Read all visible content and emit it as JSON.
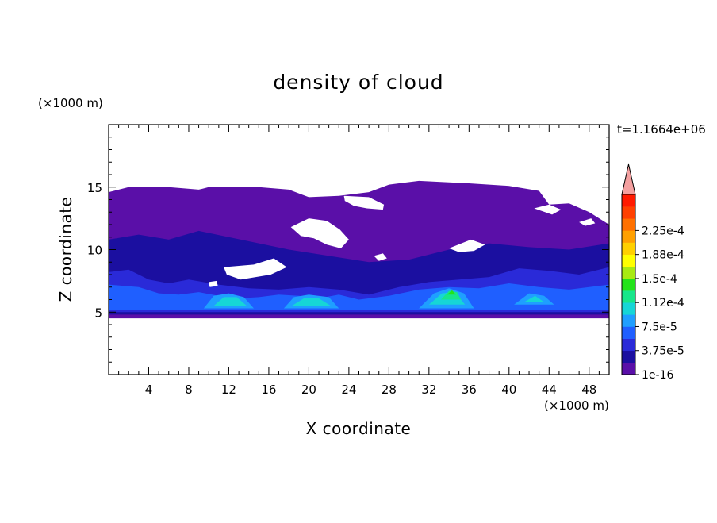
{
  "chart_data": {
    "type": "heatmap",
    "title": "density of cloud",
    "xlabel": "X coordinate",
    "ylabel": "Z coordinate",
    "x_unit": "(×1000 m)",
    "y_unit": "(×1000 m)",
    "time_label": "t=1.1664e+06",
    "xlim": [
      0,
      50
    ],
    "ylim": [
      0,
      20
    ],
    "x_ticks": [
      4,
      8,
      12,
      16,
      20,
      24,
      28,
      32,
      36,
      40,
      44,
      48
    ],
    "x_tick_labels": [
      "4",
      "8",
      "12",
      "16",
      "20",
      "24",
      "28",
      "32",
      "36",
      "40",
      "44",
      "48"
    ],
    "y_ticks": [
      5,
      10,
      15
    ],
    "y_tick_labels": [
      "5",
      "10",
      "15"
    ],
    "colorbar": {
      "labels": [
        "1e-16",
        "3.75e-5",
        "7.5e-5",
        "1.12e-4",
        "1.5e-4",
        "1.88e-4",
        "2.25e-4"
      ],
      "colors": [
        "#5a0fa8",
        "#1b0fa0",
        "#2a2ad8",
        "#1f5fff",
        "#1f9fff",
        "#16d6d6",
        "#17e68a",
        "#23e31a",
        "#a8ea12",
        "#ffff00",
        "#ffd000",
        "#ffa000",
        "#ff7000",
        "#ff4000",
        "#ff1a00"
      ],
      "extend_color": "#f4a0a0"
    },
    "regions": [
      {
        "level": 1,
        "polygon": [
          [
            0,
            14.6
          ],
          [
            2,
            15
          ],
          [
            6,
            15
          ],
          [
            9,
            14.8
          ],
          [
            10,
            15
          ],
          [
            15,
            15
          ],
          [
            18,
            14.8
          ],
          [
            20,
            14.2
          ],
          [
            23,
            14.3
          ],
          [
            26,
            14.6
          ],
          [
            28,
            15.2
          ],
          [
            31,
            15.5
          ],
          [
            36,
            15.3
          ],
          [
            40,
            15.1
          ],
          [
            43,
            14.7
          ],
          [
            44,
            13.6
          ],
          [
            46,
            13.7
          ],
          [
            48,
            13
          ],
          [
            50,
            12
          ],
          [
            50,
            4.5
          ],
          [
            0,
            4.5
          ]
        ]
      },
      {
        "level": 2,
        "polygon": [
          [
            0,
            10.8
          ],
          [
            3,
            11.2
          ],
          [
            6,
            10.8
          ],
          [
            9,
            11.5
          ],
          [
            12,
            11
          ],
          [
            15,
            10.5
          ],
          [
            18,
            10
          ],
          [
            22,
            9.5
          ],
          [
            26,
            9
          ],
          [
            30,
            9.2
          ],
          [
            34,
            10
          ],
          [
            38,
            10.5
          ],
          [
            42,
            10.2
          ],
          [
            46,
            10
          ],
          [
            50,
            10.5
          ],
          [
            50,
            4.8
          ],
          [
            0,
            4.8
          ]
        ]
      },
      {
        "level": 3,
        "polygon": [
          [
            0,
            8.2
          ],
          [
            2,
            8.4
          ],
          [
            4,
            7.6
          ],
          [
            6,
            7.3
          ],
          [
            8,
            7.6
          ],
          [
            11,
            7.2
          ],
          [
            14,
            6.9
          ],
          [
            17,
            6.8
          ],
          [
            20,
            7
          ],
          [
            23,
            6.8
          ],
          [
            26,
            6.4
          ],
          [
            29,
            7
          ],
          [
            32,
            7.4
          ],
          [
            35,
            7.6
          ],
          [
            38,
            7.8
          ],
          [
            41,
            8.5
          ],
          [
            44,
            8.3
          ],
          [
            47,
            8
          ],
          [
            50,
            8.6
          ],
          [
            50,
            5
          ],
          [
            0,
            5
          ]
        ]
      },
      {
        "level": 4,
        "polygon": [
          [
            0,
            7.2
          ],
          [
            3,
            7
          ],
          [
            5,
            6.5
          ],
          [
            7,
            6.4
          ],
          [
            9,
            6.6
          ],
          [
            11,
            6.3
          ],
          [
            13,
            6.1
          ],
          [
            15,
            6.2
          ],
          [
            17,
            6.4
          ],
          [
            19,
            6.3
          ],
          [
            21,
            6.1
          ],
          [
            23,
            6.4
          ],
          [
            25,
            6
          ],
          [
            28,
            6.3
          ],
          [
            31,
            6.8
          ],
          [
            34,
            7
          ],
          [
            37,
            6.9
          ],
          [
            40,
            7.3
          ],
          [
            43,
            7
          ],
          [
            46,
            6.8
          ],
          [
            50,
            7.2
          ],
          [
            50,
            5.2
          ],
          [
            0,
            5.2
          ]
        ]
      },
      {
        "level": 5,
        "polygon": [
          [
            9.5,
            5.3
          ],
          [
            10.5,
            6.3
          ],
          [
            12,
            6.5
          ],
          [
            13.5,
            6.2
          ],
          [
            14.5,
            5.3
          ]
        ]
      },
      {
        "level": 5,
        "polygon": [
          [
            17.5,
            5.3
          ],
          [
            18.5,
            6.2
          ],
          [
            20,
            6.4
          ],
          [
            22,
            6.2
          ],
          [
            23,
            5.3
          ]
        ]
      },
      {
        "level": 5,
        "polygon": [
          [
            31,
            5.3
          ],
          [
            32.5,
            6.5
          ],
          [
            34,
            6.9
          ],
          [
            35.5,
            6.5
          ],
          [
            36.5,
            5.3
          ]
        ]
      },
      {
        "level": 5,
        "polygon": [
          [
            40.5,
            5.6
          ],
          [
            42,
            6.5
          ],
          [
            43.5,
            6.3
          ],
          [
            44.5,
            5.6
          ]
        ]
      },
      {
        "level": 6,
        "polygon": [
          [
            10.5,
            5.5
          ],
          [
            11.5,
            6.2
          ],
          [
            12.8,
            6.2
          ],
          [
            13.8,
            5.5
          ]
        ]
      },
      {
        "level": 6,
        "polygon": [
          [
            18.3,
            5.5
          ],
          [
            19.5,
            6.1
          ],
          [
            21,
            6.1
          ],
          [
            22.2,
            5.5
          ]
        ]
      },
      {
        "level": 6,
        "polygon": [
          [
            32,
            5.6
          ],
          [
            33.3,
            6.5
          ],
          [
            34.6,
            6.6
          ],
          [
            35.6,
            5.6
          ]
        ]
      },
      {
        "level": 6,
        "polygon": [
          [
            41.5,
            5.8
          ],
          [
            42.6,
            6.3
          ],
          [
            43.5,
            5.8
          ]
        ]
      },
      {
        "level": 7,
        "polygon": [
          [
            33.2,
            6
          ],
          [
            34,
            6.7
          ],
          [
            34.8,
            6.6
          ],
          [
            35.2,
            6
          ]
        ]
      },
      {
        "level": 8,
        "polygon": [
          [
            33.8,
            6.4
          ],
          [
            34.3,
            6.75
          ],
          [
            34.7,
            6.4
          ]
        ]
      },
      {
        "level": 0,
        "polygon": [
          [
            18.2,
            11.8
          ],
          [
            20,
            12.5
          ],
          [
            21.8,
            12.3
          ],
          [
            23.1,
            11.6
          ],
          [
            24,
            10.8
          ],
          [
            23.2,
            10.1
          ],
          [
            21.8,
            10.4
          ],
          [
            20.5,
            10.9
          ],
          [
            19.2,
            11.1
          ]
        ]
      },
      {
        "level": 0,
        "polygon": [
          [
            11.5,
            8.6
          ],
          [
            14.5,
            8.8
          ],
          [
            16.5,
            9.3
          ],
          [
            17.8,
            8.6
          ],
          [
            16.2,
            8
          ],
          [
            13.2,
            7.6
          ],
          [
            11.8,
            8
          ]
        ]
      },
      {
        "level": 0,
        "polygon": [
          [
            23.5,
            14.3
          ],
          [
            26,
            14.2
          ],
          [
            27.5,
            13.6
          ],
          [
            27.4,
            13.2
          ],
          [
            25.8,
            13.3
          ],
          [
            24.5,
            13.5
          ],
          [
            23.6,
            13.9
          ]
        ]
      },
      {
        "level": 0,
        "polygon": [
          [
            34,
            10.1
          ],
          [
            36.2,
            10.8
          ],
          [
            37.6,
            10.4
          ],
          [
            36.5,
            9.9
          ],
          [
            35,
            9.8
          ]
        ]
      },
      {
        "level": 0,
        "polygon": [
          [
            42.5,
            13.3
          ],
          [
            44,
            13.6
          ],
          [
            45.2,
            13.2
          ],
          [
            44.3,
            12.8
          ]
        ]
      },
      {
        "level": 0,
        "polygon": [
          [
            47,
            12.2
          ],
          [
            48.2,
            12.5
          ],
          [
            48.6,
            12.1
          ],
          [
            47.6,
            11.9
          ]
        ]
      },
      {
        "level": 0,
        "polygon": [
          [
            26.5,
            9.5
          ],
          [
            27.4,
            9.7
          ],
          [
            27.8,
            9.3
          ],
          [
            27,
            9.1
          ]
        ]
      },
      {
        "level": 0,
        "polygon": [
          [
            10,
            7.4
          ],
          [
            10.8,
            7.5
          ],
          [
            10.9,
            7.1
          ],
          [
            10.1,
            7
          ]
        ]
      }
    ]
  }
}
